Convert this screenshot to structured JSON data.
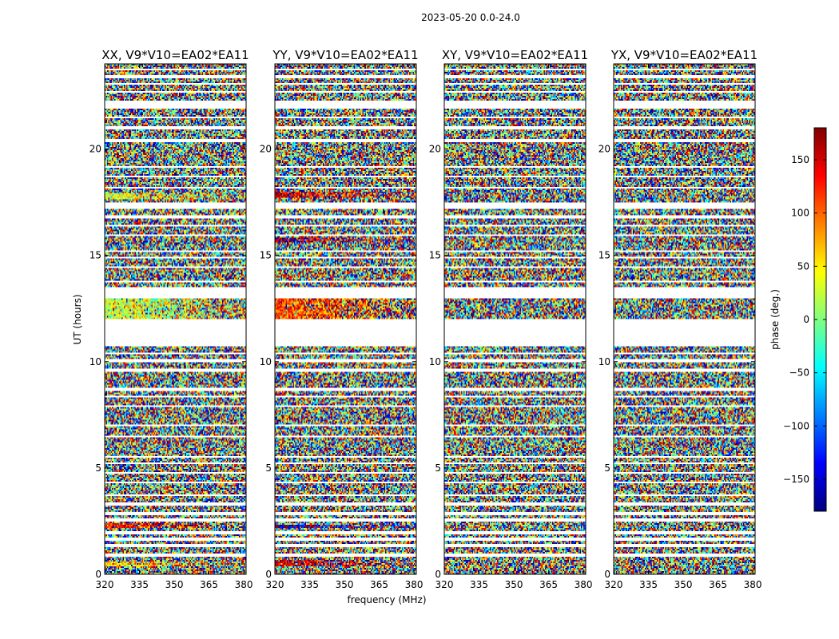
{
  "suptitle": "2023-05-20 0.0-24.0",
  "xlabel": "frequency (MHz)",
  "ylabel": "UT (hours)",
  "colorbar": {
    "label": "phase (deg.)",
    "range": [
      -180,
      180
    ],
    "ticks": [
      150,
      100,
      50,
      0,
      -50,
      -100,
      -150
    ],
    "tick_labels": [
      "150",
      "100",
      "50",
      "0",
      "−50",
      "−100",
      "−150"
    ],
    "colormap": "jet",
    "colors": [
      "#00007f",
      "#0000ff",
      "#007fff",
      "#00ffff",
      "#7fff7f",
      "#ffff00",
      "#ff7f00",
      "#ff0000",
      "#7f0000"
    ]
  },
  "chart_data": [
    {
      "type": "heatmap",
      "title": "XX, V9*V10=EA02*EA11",
      "xlim": [
        320,
        381
      ],
      "ylim": [
        0,
        24
      ],
      "xticks": [
        320,
        335,
        350,
        365,
        380
      ],
      "yticks": [
        0,
        5,
        10,
        15,
        20
      ],
      "flagged_ut_ranges": [
        [
          10.7,
          12.0
        ],
        [
          13.0,
          13.5
        ],
        [
          17.2,
          17.5
        ],
        [
          21.9,
          22.3
        ]
      ],
      "coherent_phase_bands": [
        {
          "ut": [
            12.0,
            13.0
          ],
          "phase_deg": 30
        },
        {
          "ut": [
            0.35,
            0.6
          ],
          "phase_deg": 60
        },
        {
          "ut": [
            2.2,
            2.4
          ],
          "phase_deg": 130
        },
        {
          "ut": [
            17.6,
            17.9
          ],
          "phase_deg": 40
        }
      ]
    },
    {
      "type": "heatmap",
      "title": "YY, V9*V10=EA02*EA11",
      "xlim": [
        320,
        381
      ],
      "ylim": [
        0,
        24
      ],
      "xticks": [
        320,
        335,
        350,
        365,
        380
      ],
      "yticks": [
        0,
        5,
        10,
        15,
        20
      ],
      "flagged_ut_ranges": [
        [
          10.7,
          12.0
        ],
        [
          13.0,
          13.5
        ],
        [
          17.2,
          17.5
        ],
        [
          21.9,
          22.3
        ]
      ],
      "coherent_phase_bands": [
        {
          "ut": [
            12.0,
            13.0
          ],
          "phase_deg": 110
        },
        {
          "ut": [
            0.4,
            0.65
          ],
          "phase_deg": 150
        },
        {
          "ut": [
            2.15,
            2.35
          ],
          "phase_deg": -160
        },
        {
          "ut": [
            15.6,
            15.8
          ],
          "phase_deg": 160
        },
        {
          "ut": [
            17.7,
            18.0
          ],
          "phase_deg": 140
        }
      ]
    },
    {
      "type": "heatmap",
      "title": "XY, V9*V10=EA02*EA11",
      "xlim": [
        320,
        381
      ],
      "ylim": [
        0,
        24
      ],
      "xticks": [
        320,
        335,
        350,
        365,
        380
      ],
      "yticks": [
        0,
        5,
        10,
        15,
        20
      ],
      "flagged_ut_ranges": [
        [
          10.7,
          12.0
        ],
        [
          13.0,
          13.5
        ],
        [
          17.2,
          17.5
        ],
        [
          21.9,
          22.3
        ]
      ],
      "coherent_phase_bands": []
    },
    {
      "type": "heatmap",
      "title": "YX, V9*V10=EA02*EA11",
      "xlim": [
        320,
        381
      ],
      "ylim": [
        0,
        24
      ],
      "xticks": [
        320,
        335,
        350,
        365,
        380
      ],
      "yticks": [
        0,
        5,
        10,
        15,
        20
      ],
      "flagged_ut_ranges": [
        [
          10.7,
          12.0
        ],
        [
          13.0,
          13.5
        ],
        [
          17.2,
          17.5
        ],
        [
          21.9,
          22.3
        ]
      ],
      "coherent_phase_bands": []
    }
  ]
}
